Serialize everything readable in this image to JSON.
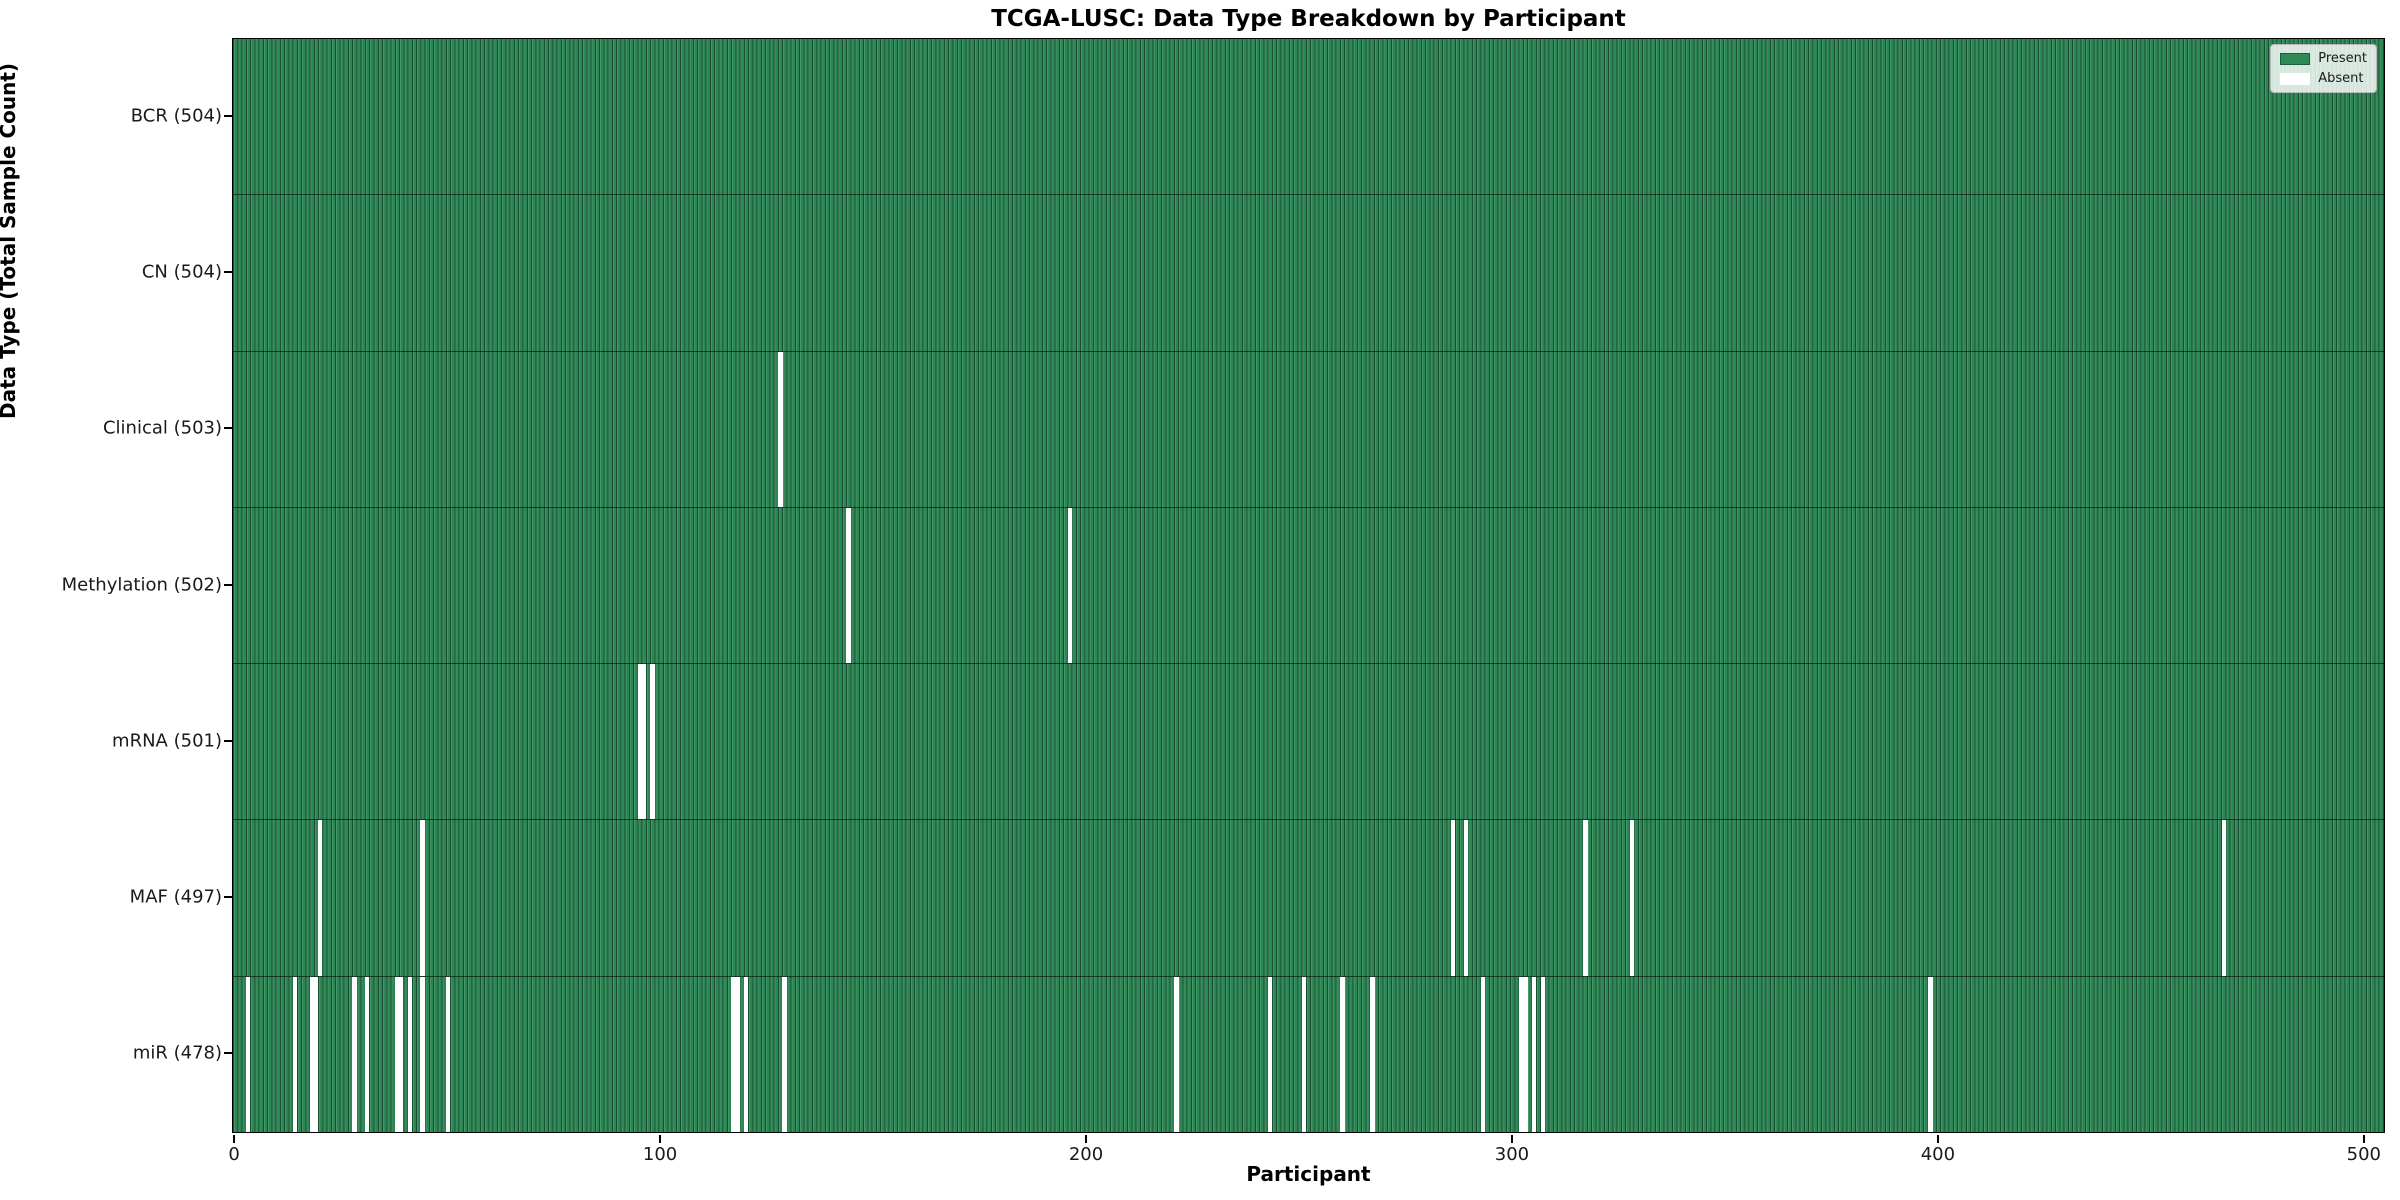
{
  "colors": {
    "present": "#2e8b57",
    "present_edge": "#1d5c39",
    "absent": "#ffffff",
    "text": "#1a1a1a"
  },
  "chart_data": {
    "type": "heatmap",
    "title": "TCGA-LUSC: Data Type Breakdown by Participant",
    "xlabel": "Participant",
    "ylabel": "Data Type (Total Sample Count)",
    "x_ticks": [
      0,
      100,
      200,
      300,
      400,
      500
    ],
    "xlim": [
      0,
      505
    ],
    "n_participants": 504,
    "grid": false,
    "legend_position": "upper right",
    "legend": [
      {
        "name": "present",
        "label": "Present",
        "color": "#2e8b57",
        "edge": "#1d5c39"
      },
      {
        "name": "absent",
        "label": "Absent",
        "color": "#ffffff",
        "edge": "rgba(255,255,255,0)"
      }
    ],
    "categories": [
      "BCR (504)",
      "CN (504)",
      "Clinical (503)",
      "Methylation (502)",
      "mRNA (501)",
      "MAF (497)",
      "miR (478)"
    ],
    "rows": [
      {
        "name": "bcr",
        "label": "BCR (504)",
        "total": 504,
        "absent": []
      },
      {
        "name": "cn",
        "label": "CN (504)",
        "total": 504,
        "absent": []
      },
      {
        "name": "clinical",
        "label": "Clinical (503)",
        "total": 503,
        "absent": [
          128
        ]
      },
      {
        "name": "methylation",
        "label": "Methylation (502)",
        "total": 502,
        "absent": [
          144,
          196
        ]
      },
      {
        "name": "mrna",
        "label": "mRNA (501)",
        "total": 501,
        "absent": [
          95,
          96,
          98
        ]
      },
      {
        "name": "maf",
        "label": "MAF (497)",
        "total": 497,
        "absent": [
          20,
          44,
          286,
          289,
          317,
          328,
          467
        ]
      },
      {
        "name": "mir",
        "label": "miR (478)",
        "total": 478,
        "absent": [
          3,
          14,
          18,
          19,
          28,
          31,
          38,
          39,
          41,
          44,
          50,
          117,
          118,
          120,
          129,
          221,
          243,
          251,
          260,
          267,
          293,
          302,
          303,
          305,
          307,
          398
        ]
      }
    ]
  }
}
